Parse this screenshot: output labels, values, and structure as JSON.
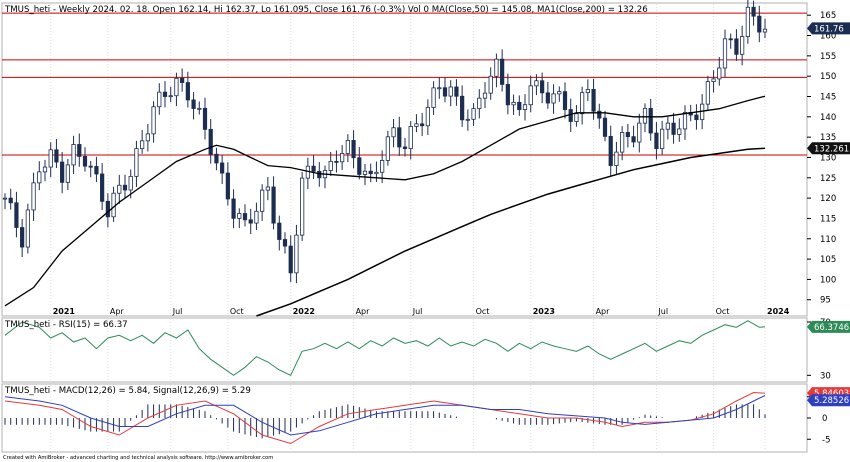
{
  "header": {
    "price": "TMUS_heti - Weekly 2024. 02. 18. Open 162.14, Hi 162.37, Lo 161.095, Close 161.76 (-0.3%) Vol 0 MA(Close,50) = 145.08, MA1(Close,200) = 132.26",
    "rsi": "TMUS_heti - RSI(15) = 66.37",
    "macd": "TMUS_heti - MACD(12,26) = 5.84, Signal(12,26,9) = 5.29"
  },
  "footer": "Created with AmiBroker - advanced charting and technical analysis software. http://www.amibroker.com",
  "colors": {
    "candle": "#1c2d52",
    "ma50": "#000000",
    "ma200": "#000000",
    "hline": "#cc0000",
    "rsi": "#2e8b57",
    "macd": "#e23b3b",
    "signal": "#2e3fc2",
    "histogram": "#1c2d52",
    "axis_text": "#000000"
  },
  "chart_data": [
    {
      "type": "candlestick",
      "title": "TMUS_heti - Weekly",
      "ylim": [
        91,
        168
      ],
      "y_ticks": [
        95,
        100,
        105,
        110,
        115,
        120,
        125,
        130,
        135,
        140,
        145,
        150,
        155,
        160,
        165
      ],
      "x_labels": [
        "2021",
        "Apr",
        "Jul",
        "Oct",
        "2022",
        "Apr",
        "Jul",
        "Oct",
        "2023",
        "Apr",
        "Jul",
        "Oct",
        "2024"
      ],
      "horizontal_levels": [
        165.5,
        154,
        149.7,
        130.6
      ],
      "last_price_label": "161.76",
      "ma200_label": "132.261",
      "close_path": [
        [
          0,
          120
        ],
        [
          3,
          110
        ],
        [
          6,
          128
        ],
        [
          8,
          130
        ],
        [
          10,
          126
        ],
        [
          12,
          131
        ],
        [
          14,
          130
        ],
        [
          16,
          124
        ],
        [
          18,
          117
        ],
        [
          20,
          122
        ],
        [
          22,
          126
        ],
        [
          24,
          134
        ],
        [
          26,
          142
        ],
        [
          28,
          146
        ],
        [
          30,
          148
        ],
        [
          32,
          146
        ],
        [
          34,
          140
        ],
        [
          36,
          133
        ],
        [
          38,
          124
        ],
        [
          40,
          117
        ],
        [
          42,
          113
        ],
        [
          44,
          118
        ],
        [
          46,
          122
        ],
        [
          48,
          110
        ],
        [
          50,
          102
        ],
        [
          52,
          124
        ],
        [
          54,
          128
        ],
        [
          56,
          125
        ],
        [
          58,
          131
        ],
        [
          60,
          132
        ],
        [
          62,
          128
        ],
        [
          64,
          124
        ],
        [
          66,
          131
        ],
        [
          68,
          136
        ],
        [
          70,
          133
        ],
        [
          72,
          138
        ],
        [
          74,
          142
        ],
        [
          76,
          148
        ],
        [
          78,
          146
        ],
        [
          80,
          141
        ],
        [
          82,
          140
        ],
        [
          84,
          148
        ],
        [
          86,
          152
        ],
        [
          88,
          145
        ],
        [
          90,
          140
        ],
        [
          92,
          149
        ],
        [
          94,
          145
        ],
        [
          96,
          146
        ],
        [
          98,
          142
        ],
        [
          100,
          140
        ],
        [
          102,
          148
        ],
        [
          104,
          138
        ],
        [
          106,
          130
        ],
        [
          108,
          134
        ],
        [
          110,
          136
        ],
        [
          112,
          140
        ],
        [
          114,
          134
        ],
        [
          116,
          137
        ],
        [
          118,
          138
        ],
        [
          120,
          140
        ],
        [
          122,
          143
        ],
        [
          124,
          150
        ],
        [
          126,
          158
        ],
        [
          128,
          157
        ],
        [
          130,
          165
        ],
        [
          132,
          163
        ],
        [
          133,
          161.76
        ]
      ],
      "ma50": [
        [
          0,
          93.5
        ],
        [
          5,
          98
        ],
        [
          10,
          107
        ],
        [
          15,
          113
        ],
        [
          20,
          119
        ],
        [
          25,
          124
        ],
        [
          30,
          129
        ],
        [
          35,
          132
        ],
        [
          37,
          133
        ],
        [
          40,
          132
        ],
        [
          43,
          130
        ],
        [
          46,
          128
        ],
        [
          50,
          127.5
        ],
        [
          55,
          126
        ],
        [
          60,
          125.5
        ],
        [
          65,
          125
        ],
        [
          70,
          124.5
        ],
        [
          75,
          126
        ],
        [
          80,
          129
        ],
        [
          85,
          133
        ],
        [
          90,
          137
        ],
        [
          95,
          139
        ],
        [
          100,
          141
        ],
        [
          105,
          141
        ],
        [
          110,
          140
        ],
        [
          115,
          140
        ],
        [
          120,
          141
        ],
        [
          125,
          142
        ],
        [
          130,
          144
        ],
        [
          133,
          145.08
        ]
      ],
      "ma200": [
        [
          44,
          91
        ],
        [
          50,
          94
        ],
        [
          55,
          97
        ],
        [
          60,
          100
        ],
        [
          65,
          103.5
        ],
        [
          70,
          107
        ],
        [
          75,
          110
        ],
        [
          80,
          113
        ],
        [
          85,
          116
        ],
        [
          90,
          118.5
        ],
        [
          95,
          121
        ],
        [
          100,
          123
        ],
        [
          105,
          125
        ],
        [
          110,
          127
        ],
        [
          115,
          128.5
        ],
        [
          120,
          130
        ],
        [
          125,
          131
        ],
        [
          130,
          132
        ],
        [
          133,
          132.26
        ]
      ]
    },
    {
      "type": "line",
      "title": "RSI(15)",
      "ylim": [
        25,
        73
      ],
      "y_ticks": [
        30,
        70
      ],
      "value_label": "66.3746",
      "series": [
        {
          "name": "RSI(15)",
          "values": [
            [
              0,
              60
            ],
            [
              3,
              70
            ],
            [
              6,
              66
            ],
            [
              8,
              58
            ],
            [
              10,
              62
            ],
            [
              12,
              55
            ],
            [
              14,
              58
            ],
            [
              16,
              50
            ],
            [
              18,
              58
            ],
            [
              20,
              60
            ],
            [
              22,
              56
            ],
            [
              24,
              60
            ],
            [
              26,
              54
            ],
            [
              28,
              62
            ],
            [
              30,
              58
            ],
            [
              32,
              64
            ],
            [
              34,
              50
            ],
            [
              36,
              42
            ],
            [
              38,
              36
            ],
            [
              40,
              30
            ],
            [
              42,
              36
            ],
            [
              44,
              44
            ],
            [
              46,
              40
            ],
            [
              48,
              34
            ],
            [
              50,
              30
            ],
            [
              52,
              48
            ],
            [
              54,
              50
            ],
            [
              56,
              54
            ],
            [
              58,
              50
            ],
            [
              60,
              55
            ],
            [
              62,
              50
            ],
            [
              64,
              56
            ],
            [
              66,
              52
            ],
            [
              68,
              58
            ],
            [
              70,
              54
            ],
            [
              72,
              56
            ],
            [
              74,
              52
            ],
            [
              76,
              58
            ],
            [
              78,
              52
            ],
            [
              80,
              55
            ],
            [
              82,
              52
            ],
            [
              84,
              57
            ],
            [
              86,
              54
            ],
            [
              88,
              48
            ],
            [
              90,
              54
            ],
            [
              92,
              50
            ],
            [
              94,
              55
            ],
            [
              96,
              52
            ],
            [
              98,
              50
            ],
            [
              100,
              48
            ],
            [
              102,
              52
            ],
            [
              104,
              46
            ],
            [
              106,
              42
            ],
            [
              108,
              46
            ],
            [
              110,
              50
            ],
            [
              112,
              54
            ],
            [
              114,
              48
            ],
            [
              116,
              52
            ],
            [
              118,
              56
            ],
            [
              120,
              54
            ],
            [
              122,
              60
            ],
            [
              124,
              64
            ],
            [
              126,
              68
            ],
            [
              128,
              66
            ],
            [
              130,
              71
            ],
            [
              132,
              66
            ],
            [
              133,
              66.37
            ]
          ]
        }
      ]
    },
    {
      "type": "line",
      "title": "MACD(12,26) / Signal(12,26,9)",
      "ylim": [
        -8,
        8
      ],
      "y_ticks": [
        -5,
        0,
        5
      ],
      "value_labels": [
        "5.84603",
        "5.28526"
      ],
      "series": [
        {
          "name": "MACD(12,26)",
          "values": [
            [
              0,
              4
            ],
            [
              6,
              3
            ],
            [
              10,
              2
            ],
            [
              15,
              -2
            ],
            [
              20,
              -4
            ],
            [
              25,
              0
            ],
            [
              30,
              3
            ],
            [
              35,
              4
            ],
            [
              40,
              1
            ],
            [
              45,
              -4
            ],
            [
              50,
              -6
            ],
            [
              55,
              -2
            ],
            [
              60,
              1
            ],
            [
              65,
              2
            ],
            [
              70,
              3
            ],
            [
              75,
              4
            ],
            [
              80,
              3
            ],
            [
              85,
              2
            ],
            [
              90,
              1
            ],
            [
              95,
              0
            ],
            [
              100,
              0
            ],
            [
              105,
              -1
            ],
            [
              108,
              -2
            ],
            [
              112,
              -1
            ],
            [
              116,
              -1
            ],
            [
              120,
              -0.5
            ],
            [
              124,
              1
            ],
            [
              128,
              4
            ],
            [
              131,
              6
            ],
            [
              133,
              5.84
            ]
          ]
        },
        {
          "name": "Signal(12,26,9)",
          "values": [
            [
              0,
              5
            ],
            [
              6,
              4
            ],
            [
              10,
              3
            ],
            [
              15,
              0
            ],
            [
              20,
              -2
            ],
            [
              25,
              -2
            ],
            [
              30,
              1
            ],
            [
              35,
              3
            ],
            [
              40,
              3
            ],
            [
              45,
              -1
            ],
            [
              50,
              -4
            ],
            [
              55,
              -3
            ],
            [
              60,
              -1
            ],
            [
              65,
              1
            ],
            [
              70,
              2
            ],
            [
              75,
              3
            ],
            [
              80,
              3
            ],
            [
              85,
              2
            ],
            [
              90,
              2
            ],
            [
              95,
              1
            ],
            [
              100,
              0.5
            ],
            [
              105,
              0
            ],
            [
              108,
              -1
            ],
            [
              112,
              -1.5
            ],
            [
              116,
              -1
            ],
            [
              120,
              -0.5
            ],
            [
              124,
              0
            ],
            [
              128,
              2
            ],
            [
              131,
              4
            ],
            [
              133,
              5.29
            ]
          ]
        }
      ]
    }
  ]
}
